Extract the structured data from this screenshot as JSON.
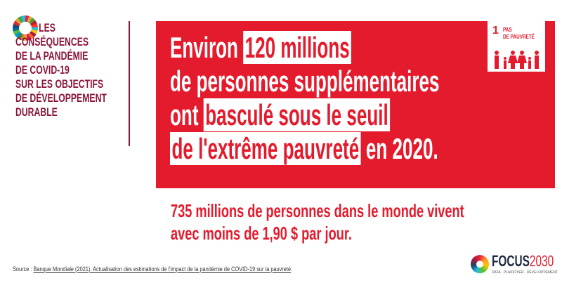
{
  "sidebar": {
    "logo_icon": "sdg-wheel-icon",
    "lines": [
      "LES",
      "CONSÉQUENCES",
      "DE LA PANDÉMIE",
      "DE COVID-19",
      "SUR LES OBJECTIFS",
      "DE DÉVELOPPEMENT",
      "DURABLE"
    ],
    "color": "#8b1538"
  },
  "headline": {
    "l1_a": "Environ",
    "l1_hl": "120 millions",
    "l2": "de personnes supplémentaires",
    "l3_a": "ont",
    "l3_hl": "basculé sous le seuil",
    "l4_hl": "de l'extrême pauvreté",
    "l4_b": "en 2020."
  },
  "goal_badge": {
    "number": "1",
    "title_l1": "PAS",
    "title_l2": "DE PAUVRETÉ",
    "icon": "family-icon"
  },
  "subtext": {
    "l1": "735 millions de personnes dans le monde vivent",
    "l2": "avec moins de 1,90 $ par jour."
  },
  "source": {
    "prefix": "Source : ",
    "link": "Banque Mondiale (2021). Actualisation des estimations de l'impact de la pandémie de COVID-19 sur la pauvreté",
    "suffix": "."
  },
  "brand": {
    "name_a": "FOCUS",
    "name_b": "2030",
    "tagline": "DATA · PLAIDOYER · DÉVELOPPEMENT"
  },
  "colors": {
    "red": "#e31b2d",
    "maroon": "#8b1538"
  }
}
